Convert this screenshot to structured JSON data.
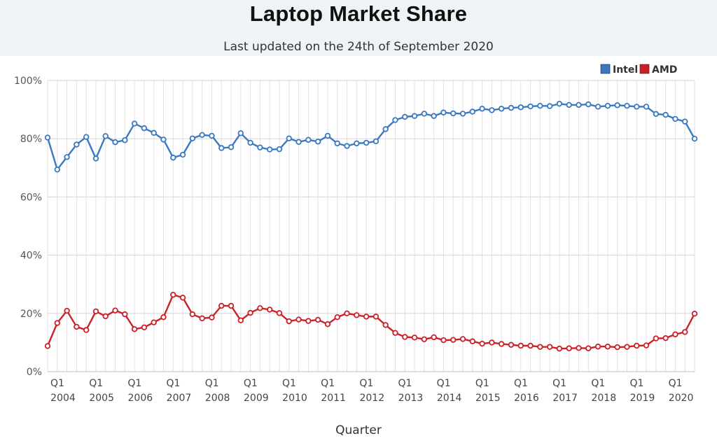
{
  "header": {
    "title": "Laptop Market Share",
    "subtitle": "Last updated on the 24th of September 2020"
  },
  "chart_data": {
    "type": "line",
    "title": "Laptop Market Share",
    "subtitle": "Last updated on the 24th of September 2020",
    "xlabel": "Quarter",
    "ylabel": "",
    "ylim": [
      0,
      100
    ],
    "y_ticks": [
      "0%",
      "20%",
      "40%",
      "60%",
      "80%",
      "100%"
    ],
    "y_tick_values": [
      0,
      20,
      40,
      60,
      80,
      100
    ],
    "grid": true,
    "legend_position": "top-right",
    "x_tick_q_label": "Q1",
    "x_years": [
      "2004",
      "2005",
      "2006",
      "2007",
      "2008",
      "2009",
      "2010",
      "2011",
      "2012",
      "2013",
      "2014",
      "2015",
      "2016",
      "2017",
      "2018",
      "2019",
      "2020"
    ],
    "categories": [
      "Q1 2004",
      "Q2 2004",
      "Q3 2004",
      "Q4 2004",
      "Q1 2005",
      "Q2 2005",
      "Q3 2005",
      "Q4 2005",
      "Q1 2006",
      "Q2 2006",
      "Q3 2006",
      "Q4 2006",
      "Q1 2007",
      "Q2 2007",
      "Q3 2007",
      "Q4 2007",
      "Q1 2008",
      "Q2 2008",
      "Q3 2008",
      "Q4 2008",
      "Q1 2009",
      "Q2 2009",
      "Q3 2009",
      "Q4 2009",
      "Q1 2010",
      "Q2 2010",
      "Q3 2010",
      "Q4 2010",
      "Q1 2011",
      "Q2 2011",
      "Q3 2011",
      "Q4 2011",
      "Q1 2012",
      "Q2 2012",
      "Q3 2012",
      "Q4 2012",
      "Q1 2013",
      "Q2 2013",
      "Q3 2013",
      "Q4 2013",
      "Q1 2014",
      "Q2 2014",
      "Q3 2014",
      "Q4 2014",
      "Q1 2015",
      "Q2 2015",
      "Q3 2015",
      "Q4 2015",
      "Q1 2016",
      "Q2 2016",
      "Q3 2016",
      "Q4 2016",
      "Q1 2017",
      "Q2 2017",
      "Q3 2017",
      "Q4 2017",
      "Q1 2018",
      "Q2 2018",
      "Q3 2018",
      "Q4 2018",
      "Q1 2019",
      "Q2 2019",
      "Q3 2019",
      "Q4 2019",
      "Q1 2020",
      "Q2 2020",
      "Q3 2020",
      "Q4 2020"
    ],
    "series": [
      {
        "name": "Intel",
        "color": "#3a78c0",
        "values": [
          80.4,
          69.4,
          73.7,
          78.0,
          80.6,
          73.2,
          80.9,
          78.8,
          79.5,
          85.2,
          83.6,
          82.0,
          79.7,
          73.5,
          74.5,
          80.1,
          81.3,
          81.0,
          76.8,
          77.1,
          81.9,
          78.6,
          77.0,
          76.3,
          76.4,
          80.1,
          78.9,
          79.6,
          79.0,
          81.0,
          78.4,
          77.5,
          78.4,
          78.6,
          79.1,
          83.3,
          86.4,
          87.5,
          87.8,
          88.6,
          87.8,
          89.0,
          88.7,
          88.6,
          89.3,
          90.3,
          89.8,
          90.3,
          90.6,
          90.8,
          91.1,
          91.3,
          91.2,
          92.0,
          91.6,
          91.6,
          91.8,
          91.0,
          91.3,
          91.5,
          91.3,
          91.0,
          91.0,
          88.5,
          88.2,
          86.8,
          85.9,
          80.0
        ]
      },
      {
        "name": "AMD",
        "color": "#cc2027",
        "values": [
          8.8,
          16.7,
          20.9,
          15.4,
          14.3,
          20.7,
          19.0,
          21.0,
          19.7,
          14.6,
          15.2,
          16.9,
          18.7,
          26.4,
          25.4,
          19.7,
          18.3,
          18.6,
          22.6,
          22.6,
          17.6,
          20.2,
          21.8,
          21.3,
          20.1,
          17.3,
          17.9,
          17.4,
          17.8,
          16.3,
          18.7,
          20.0,
          19.4,
          18.9,
          18.9,
          16.0,
          13.3,
          11.9,
          11.7,
          11.1,
          11.8,
          10.8,
          10.9,
          11.2,
          10.4,
          9.6,
          10.0,
          9.5,
          9.2,
          8.9,
          8.9,
          8.5,
          8.5,
          7.9,
          8.0,
          8.1,
          8.0,
          8.6,
          8.6,
          8.4,
          8.5,
          8.9,
          9.0,
          11.4,
          11.5,
          12.8,
          13.6,
          19.9
        ]
      }
    ]
  }
}
